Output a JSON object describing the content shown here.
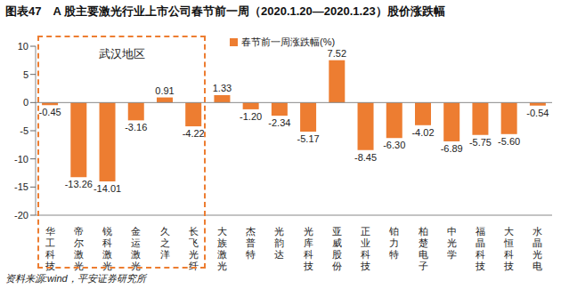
{
  "chart_data": {
    "type": "bar",
    "title": "图表47　A 股主要激光行业上市公司春节前一周（2020.1.20—2020.1.23）股价涨跌幅",
    "categories": [
      "华工科技",
      "帝尔激光",
      "锐科激光",
      "金运激光",
      "久之洋",
      "长飞光纤",
      "大族激光",
      "杰普特",
      "光韵达",
      "光库科技",
      "亚威股份",
      "正业科技",
      "铂力特",
      "柏楚电子",
      "中光学",
      "福晶科技",
      "大恒科技",
      "水晶光电"
    ],
    "series": [
      {
        "name": "春节前一周涨跌幅(%)",
        "color": "#ED7D31",
        "values": [
          -0.45,
          -13.26,
          -14.01,
          -3.16,
          0.91,
          -4.22,
          1.33,
          -1.2,
          -2.34,
          -5.17,
          7.52,
          -8.45,
          -6.3,
          -4.02,
          -6.89,
          -5.75,
          -5.6,
          -0.54
        ],
        "value_labels": [
          "-0.45",
          "-13.26",
          "-14.01",
          "-3.16",
          "0.91",
          "-4.22",
          "1.33",
          "-1.20",
          "-2.34",
          "-5.17",
          "7.52",
          "-8.45",
          "-6.30",
          "-4.02",
          "-6.89",
          "-5.75",
          "-5.60",
          "-0.54"
        ]
      }
    ],
    "ylim": [
      -20,
      10
    ],
    "yticks": [
      -20,
      -15,
      -10,
      -5,
      0,
      5,
      10
    ],
    "grid": false,
    "data_labels": true,
    "legend": "top",
    "annotation": {
      "text": "武汉地区",
      "categories": [
        "华工科技",
        "帝尔激光",
        "锐科激光",
        "金运激光",
        "久之洋",
        "长飞光纤"
      ]
    },
    "source": "资料来源:wind，平安证券研究所"
  }
}
